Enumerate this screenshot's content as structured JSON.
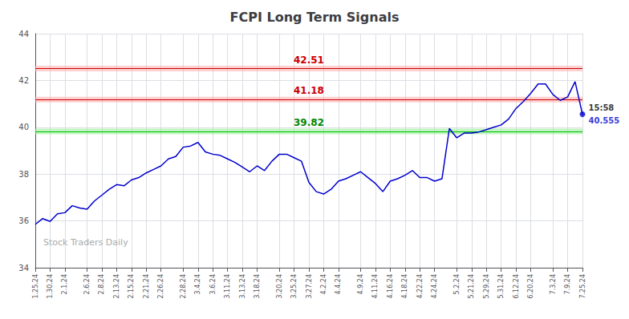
{
  "chart_data": {
    "type": "line",
    "title": "FCPI Long Term Signals",
    "categories": [
      "1.25.24",
      null,
      "1.30.24",
      null,
      "2.1.24",
      null,
      null,
      "2.6.24",
      null,
      "2.8.24",
      null,
      "2.13.24",
      null,
      "2.15.24",
      null,
      "2.21.24",
      null,
      "2.26.24",
      null,
      null,
      "2.28.24",
      null,
      "3.4.24",
      null,
      "3.6.24",
      null,
      "3.11.24",
      null,
      "3.13.24",
      null,
      "3.18.24",
      null,
      null,
      "3.20.24",
      null,
      "3.25.24",
      null,
      "3.27.24",
      null,
      "4.2.24",
      null,
      "4.4.24",
      null,
      null,
      "4.9.24",
      null,
      "4.11.24",
      null,
      "4.16.24",
      null,
      "4.18.24",
      null,
      "4.22.24",
      null,
      "4.24.24",
      null,
      null,
      "5.2.24",
      null,
      "5.21.24",
      null,
      "5.29.24",
      null,
      "5.31.24",
      null,
      "6.12.24",
      null,
      "6.20.24",
      null,
      null,
      "7.3.24",
      null,
      "7.9.24",
      null,
      "7.25.24"
    ],
    "values": [
      35.85,
      36.1,
      35.98,
      36.3,
      36.35,
      36.65,
      36.55,
      36.5,
      36.85,
      37.1,
      37.35,
      37.55,
      37.5,
      37.75,
      37.85,
      38.05,
      38.2,
      38.35,
      38.65,
      38.75,
      39.15,
      39.2,
      39.35,
      38.95,
      38.85,
      38.8,
      38.65,
      38.5,
      38.3,
      38.1,
      38.35,
      38.15,
      38.55,
      38.85,
      38.85,
      38.7,
      38.55,
      37.65,
      37.25,
      37.15,
      37.35,
      37.7,
      37.8,
      37.95,
      38.1,
      37.85,
      37.6,
      37.25,
      37.7,
      37.8,
      37.95,
      38.15,
      37.85,
      37.85,
      37.7,
      37.8,
      39.95,
      39.55,
      39.75,
      39.75,
      39.8,
      39.9,
      40.0,
      40.1,
      40.35,
      40.8,
      41.1,
      41.45,
      41.85,
      41.85,
      41.4,
      41.15,
      41.3,
      41.95,
      40.555
    ],
    "color": "#0000cc",
    "ylim": [
      34,
      44
    ],
    "yticks": [
      34,
      36,
      38,
      40,
      42,
      44
    ],
    "grid": true,
    "annotations": [
      {
        "y": 39.82,
        "label": "39.82",
        "band": [
          39.7,
          39.94
        ],
        "color": "#00bb00",
        "label_color": "#008800",
        "band_color": "#90ee90"
      },
      {
        "y": 41.18,
        "label": "41.18",
        "band": [
          41.06,
          41.3
        ],
        "color": "#cc0000",
        "label_color": "#cc0000",
        "band_color": "#ffaaaa"
      },
      {
        "y": 42.51,
        "label": "42.51",
        "band": [
          42.39,
          42.63
        ],
        "color": "#cc0000",
        "label_color": "#cc0000",
        "band_color": "#ffaaaa"
      }
    ],
    "last_point": {
      "value": 40.555,
      "label": "40.555",
      "time_label": "15:58"
    },
    "watermark": "Stock Traders Daily",
    "watermark_color": "#aaaaaa"
  }
}
